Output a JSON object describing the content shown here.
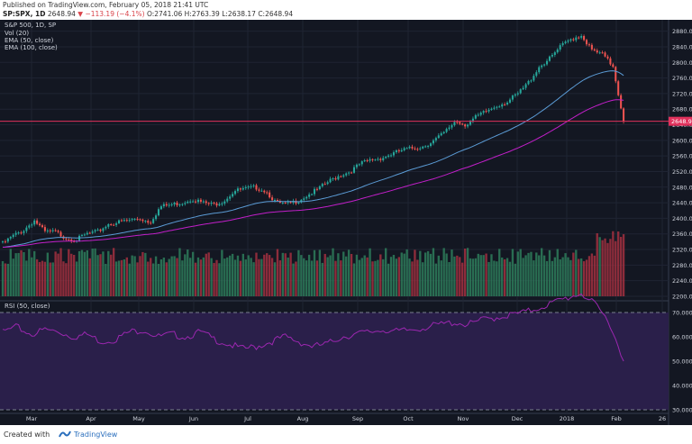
{
  "header": {
    "published": "Published on TradingView.com, February 05, 2018 21:41 UTC",
    "symbol": "SP:SPX, 1D",
    "price": "2648.94",
    "change": "−113.19 (−4.1%)",
    "ohlc": "O:2741.06 H:2763.39 L:2638.17 C:2648.94"
  },
  "legend": {
    "title": "S&P 500, 1D, SP",
    "vol": "Vol (20)",
    "ema50": "EMA (50, close)",
    "ema100": "EMA (100, close)",
    "rsi": "RSI (50, close)"
  },
  "price_tag": "2648.94",
  "footer": {
    "created_with": "Created with",
    "brand": "TradingView"
  },
  "colors": {
    "background": "#131722",
    "up": "#26a69a",
    "down": "#ef5350",
    "ema50": "#5b9bd5",
    "ema100": "#c21fc9",
    "rsi": "#9c27b0",
    "rsi_band": "#2a1f4a",
    "price_line": "#e0315c"
  },
  "chart_data": [
    {
      "type": "candlestick",
      "title": "S&P 500, 1D, SP",
      "ylim": [
        2200,
        2900
      ],
      "y_ticks": [
        "2200.00",
        "2240.00",
        "2280.00",
        "2320.00",
        "2360.00",
        "2400.00",
        "2440.00",
        "2480.00",
        "2520.00",
        "2560.00",
        "2600.00",
        "2640.00",
        "2680.00",
        "2720.00",
        "2760.00",
        "2800.00",
        "2840.00",
        "2880.00"
      ],
      "x_ticks": [
        "Mar",
        "Apr",
        "May",
        "Jun",
        "Jul",
        "Aug",
        "Sep",
        "Oct",
        "Nov",
        "Dec",
        "2018",
        "Feb",
        "26"
      ],
      "anchor_closes": [
        2335,
        2355,
        2370,
        2395,
        2365,
        2365,
        2350,
        2345,
        2360,
        2365,
        2385,
        2390,
        2395,
        2400,
        2390,
        2430,
        2435,
        2440,
        2450,
        2440,
        2435,
        2445,
        2470,
        2475,
        2480,
        2470,
        2440,
        2435,
        2445,
        2460,
        2475,
        2495,
        2510,
        2520,
        2540,
        2550,
        2555,
        2565,
        2575,
        2580,
        2585,
        2600,
        2620,
        2650,
        2640,
        2660,
        2675,
        2690,
        2700,
        2720,
        2750,
        2790,
        2810,
        2840,
        2860,
        2870,
        2830,
        2820,
        2790,
        2648.94
      ],
      "volume_ylim": [
        0,
        5
      ]
    },
    {
      "type": "line",
      "title": "RSI (50, close)",
      "ylim": [
        30,
        70
      ],
      "y_ticks": [
        "30.0000",
        "40.0000",
        "50.0000",
        "60.0000",
        "70.0000"
      ],
      "anchor_values": [
        62,
        64,
        61,
        63,
        62,
        60,
        61,
        58,
        59,
        62,
        63,
        60,
        61,
        60,
        62,
        59,
        57,
        55,
        56,
        58,
        60,
        58,
        56,
        57,
        60,
        61,
        62,
        63,
        62,
        63,
        64,
        65,
        66,
        65,
        67,
        68,
        69,
        70,
        72,
        74,
        76,
        78,
        73,
        66,
        50
      ]
    }
  ]
}
